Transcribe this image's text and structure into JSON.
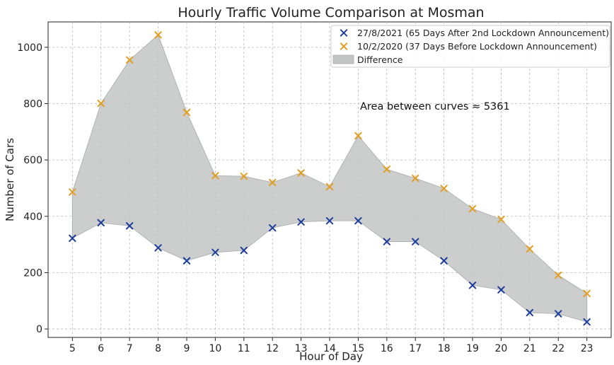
{
  "chart_data": {
    "type": "scatter",
    "title": "Hourly Traffic Volume Comparison at Mosman",
    "xlabel": "Hour of Day",
    "ylabel": "Number of Cars",
    "x": [
      5,
      6,
      7,
      8,
      9,
      10,
      11,
      12,
      13,
      14,
      15,
      16,
      17,
      18,
      19,
      20,
      21,
      22,
      23
    ],
    "xlim": [
      4.15,
      23.85
    ],
    "ylim": [
      -30,
      1090
    ],
    "yticks": [
      0,
      200,
      400,
      600,
      800,
      1000
    ],
    "grid": true,
    "series": [
      {
        "name": "27/8/2021 (65 Days After 2nd Lockdown Announcement)",
        "marker": "x",
        "color": "#1f3e9c",
        "values": [
          322,
          377,
          366,
          288,
          242,
          272,
          279,
          359,
          380,
          384,
          384,
          310,
          310,
          242,
          155,
          139,
          58,
          54,
          25
        ]
      },
      {
        "name": "10/2/2020 (37 Days Before Lockdown Announcement)",
        "marker": "x",
        "color": "#e39d20",
        "values": [
          486,
          801,
          955,
          1044,
          769,
          544,
          542,
          520,
          554,
          505,
          686,
          567,
          535,
          499,
          427,
          389,
          284,
          191,
          126
        ]
      }
    ],
    "fill_between": {
      "name": "Difference",
      "color": "#c3c4c4"
    },
    "legend": {
      "position": "top-right"
    },
    "annotation": "Area between curves ≈ 5361"
  }
}
